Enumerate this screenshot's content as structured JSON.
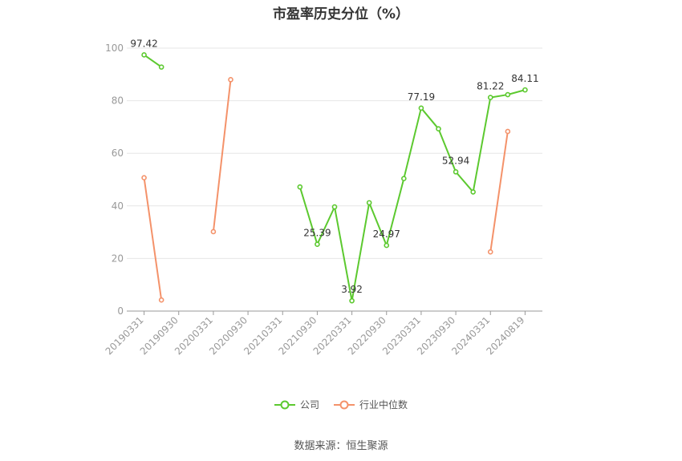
{
  "title": "市盈率历史分位（%）",
  "source": "数据来源：恒生聚源",
  "colors": {
    "company": "#5cc92f",
    "industry": "#f4926a",
    "grid": "#e6e6e6",
    "axis": "#999999"
  },
  "legend": [
    {
      "name": "公司",
      "color": "#5cc92f"
    },
    {
      "name": "行业中位数",
      "color": "#f4926a"
    }
  ],
  "chart_data": {
    "type": "line",
    "x_tick_labels": [
      "20190331",
      "20190930",
      "20200331",
      "20200930",
      "20210331",
      "20210930",
      "20220331",
      "20220930",
      "20230331",
      "20230930",
      "20240331",
      "20240819"
    ],
    "y_ticks": [
      0,
      20,
      40,
      60,
      80,
      100
    ],
    "ylim": [
      0,
      100
    ],
    "grid": true,
    "legend_position": "bottom",
    "series": [
      {
        "name": "公司",
        "color": "#5cc92f",
        "points": [
          {
            "x": 0,
            "y": 97.42,
            "label": "97.42"
          },
          {
            "x": 0.5,
            "y": 92.8
          },
          {
            "x": 4.5,
            "y": 47.2
          },
          {
            "x": 5,
            "y": 25.39,
            "label": "25.39"
          },
          {
            "x": 5.5,
            "y": 39.6
          },
          {
            "x": 6,
            "y": 3.92,
            "label": "3.92"
          },
          {
            "x": 6.5,
            "y": 41.2
          },
          {
            "x": 7,
            "y": 24.97,
            "label": "24.97"
          },
          {
            "x": 7.5,
            "y": 50.4
          },
          {
            "x": 8,
            "y": 77.19,
            "label": "77.19"
          },
          {
            "x": 8.5,
            "y": 69.3
          },
          {
            "x": 9,
            "y": 52.94,
            "label": "52.94"
          },
          {
            "x": 9.5,
            "y": 45.3
          },
          {
            "x": 10,
            "y": 81.22,
            "label": "81.22"
          },
          {
            "x": 10.5,
            "y": 82.3
          },
          {
            "x": 11,
            "y": 84.11,
            "label": "84.11"
          }
        ]
      },
      {
        "name": "行业中位数",
        "color": "#f4926a",
        "points": [
          {
            "x": 0,
            "y": 50.7
          },
          {
            "x": 0.5,
            "y": 4.2
          },
          {
            "x": 2,
            "y": 30.2
          },
          {
            "x": 2.5,
            "y": 88.0
          },
          {
            "x": 10,
            "y": 22.5
          },
          {
            "x": 10.5,
            "y": 68.3
          }
        ]
      }
    ]
  }
}
